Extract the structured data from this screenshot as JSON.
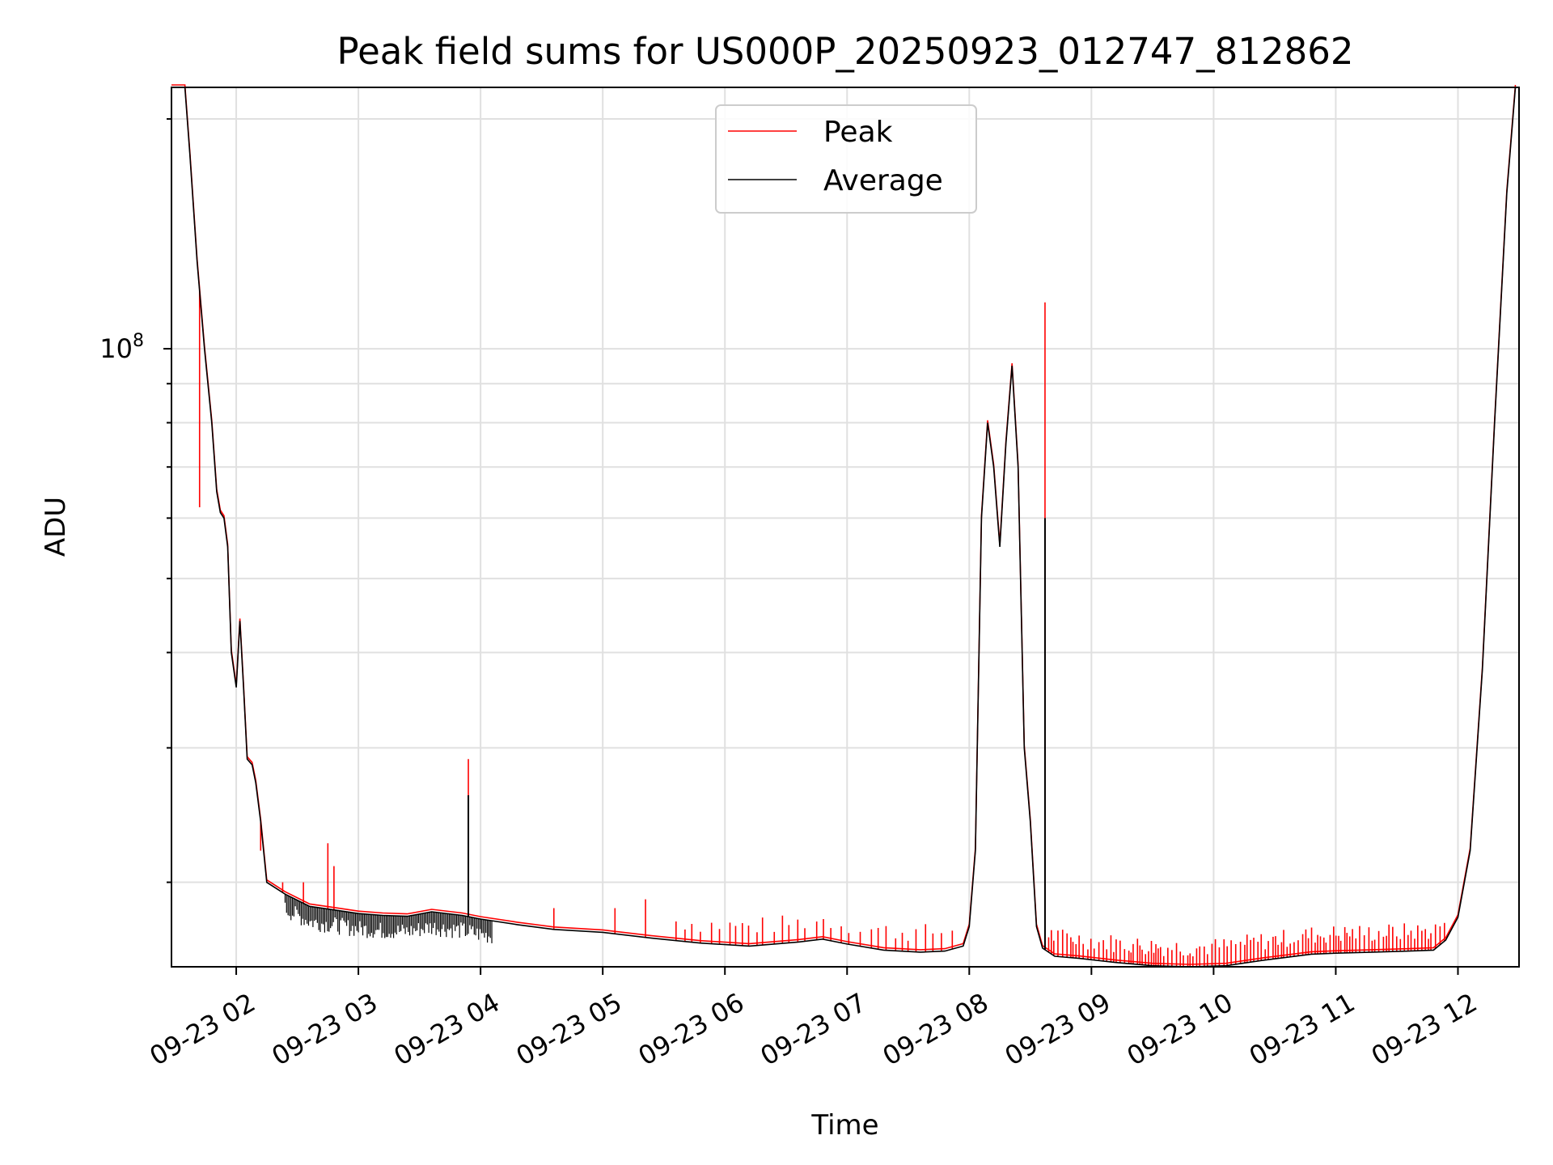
{
  "chart_data": {
    "type": "line",
    "title": "Peak field sums for US000P_20250923_012747_812862",
    "xlabel": "Time",
    "ylabel": "ADU",
    "x_tick_labels": [
      "09-23 02",
      "09-23 03",
      "09-23 04",
      "09-23 05",
      "09-23 06",
      "09-23 07",
      "09-23 08",
      "09-23 09",
      "09-23 10",
      "09-23 11",
      "09-23 12"
    ],
    "x_tick_hours": [
      2,
      3,
      4,
      5,
      6,
      7,
      8,
      9,
      10,
      11,
      12
    ],
    "xlim_hours": [
      1.47,
      12.5
    ],
    "y_scale": "log",
    "ylim": [
      15500000,
      220000000
    ],
    "y_tick_label": {
      "base": "10",
      "exp": "8",
      "value": 100000000
    },
    "grid": true,
    "legend": {
      "placement": "top-center",
      "entries": [
        "Peak",
        "Average"
      ]
    },
    "colors": {
      "Peak": "#ff0000",
      "Average": "#000000",
      "grid": "#e0e0e0"
    },
    "series": [
      {
        "name": "Average",
        "x_hours": [
          1.47,
          1.58,
          1.62,
          1.68,
          1.74,
          1.8,
          1.84,
          1.87,
          1.9,
          1.93,
          1.96,
          2.0,
          2.03,
          2.06,
          2.09,
          2.13,
          2.16,
          2.2,
          2.25,
          2.4,
          2.6,
          2.8,
          3.0,
          3.2,
          3.4,
          3.6,
          3.85,
          4.0,
          4.3,
          4.6,
          5.0,
          5.4,
          5.8,
          6.2,
          6.6,
          6.8,
          7.0,
          7.3,
          7.6,
          7.8,
          7.95,
          8.0,
          8.05,
          8.1,
          8.15,
          8.2,
          8.25,
          8.3,
          8.35,
          8.4,
          8.45,
          8.5,
          8.55,
          8.6,
          8.7,
          8.9,
          9.2,
          9.5,
          9.8,
          10.1,
          10.4,
          10.8,
          11.0,
          11.3,
          11.6,
          11.8,
          11.9,
          12.0,
          12.1,
          12.2,
          12.3,
          12.4,
          12.47
        ],
        "y": [
          220000000,
          220000000,
          180000000,
          130000000,
          100000000,
          80000000,
          65000000,
          61000000,
          60000000,
          55000000,
          40000000,
          36000000,
          44000000,
          36000000,
          29000000,
          28500000,
          27000000,
          24000000,
          20000000,
          19300000,
          18600000,
          18400000,
          18200000,
          18100000,
          18050000,
          18300000,
          18100000,
          17900000,
          17600000,
          17350000,
          17200000,
          16900000,
          16650000,
          16500000,
          16700000,
          16850000,
          16600000,
          16300000,
          16200000,
          16250000,
          16500000,
          17500000,
          22000000,
          60000000,
          80000000,
          70000000,
          55000000,
          75000000,
          95000000,
          70000000,
          30000000,
          24000000,
          17500000,
          16400000,
          16000000,
          15900000,
          15700000,
          15550000,
          15500000,
          15550000,
          15800000,
          16100000,
          16150000,
          16200000,
          16250000,
          16300000,
          16800000,
          18000000,
          22000000,
          38000000,
          80000000,
          160000000,
          220000000
        ]
      },
      {
        "name": "Peak",
        "note_shape": "follows Average with many narrow upward spikes",
        "spikes": [
          {
            "x_hour": 1.7,
            "y": 62000000
          },
          {
            "x_hour": 2.2,
            "y": 22000000
          },
          {
            "x_hour": 2.38,
            "y": 20000000
          },
          {
            "x_hour": 2.55,
            "y": 20000000
          },
          {
            "x_hour": 2.75,
            "y": 22500000
          },
          {
            "x_hour": 2.8,
            "y": 21000000
          },
          {
            "x_hour": 3.9,
            "y": 29000000
          },
          {
            "x_hour": 4.6,
            "y": 18500000
          },
          {
            "x_hour": 5.1,
            "y": 18500000
          },
          {
            "x_hour": 5.35,
            "y": 19000000
          },
          {
            "x_hour": 8.62,
            "y": 115000000
          }
        ]
      }
    ]
  }
}
